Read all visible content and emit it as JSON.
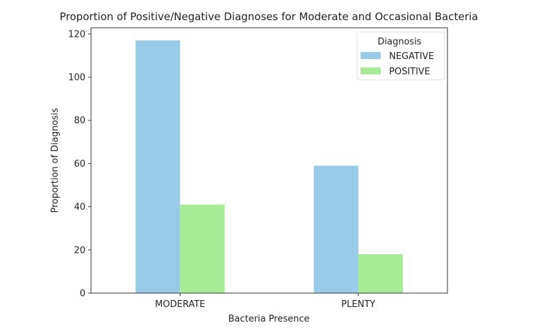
{
  "chart_data": {
    "type": "bar",
    "title": "Proportion of Positive/Negative Diagnoses for Moderate and Occasional Bacteria",
    "xlabel": "Bacteria Presence",
    "ylabel": "Proportion of Diagnosis",
    "categories": [
      "MODERATE",
      "PLENTY"
    ],
    "series": [
      {
        "name": "NEGATIVE",
        "values": [
          117,
          59
        ],
        "color": "#97cbe8"
      },
      {
        "name": "POSITIVE",
        "values": [
          41,
          18
        ],
        "color": "#a6ec97"
      }
    ],
    "ylim": [
      0,
      122.85
    ],
    "yticks": [
      0,
      20,
      40,
      60,
      80,
      100,
      120
    ],
    "legend": {
      "title": "Diagnosis",
      "placement": "top-right"
    },
    "grid": false
  }
}
